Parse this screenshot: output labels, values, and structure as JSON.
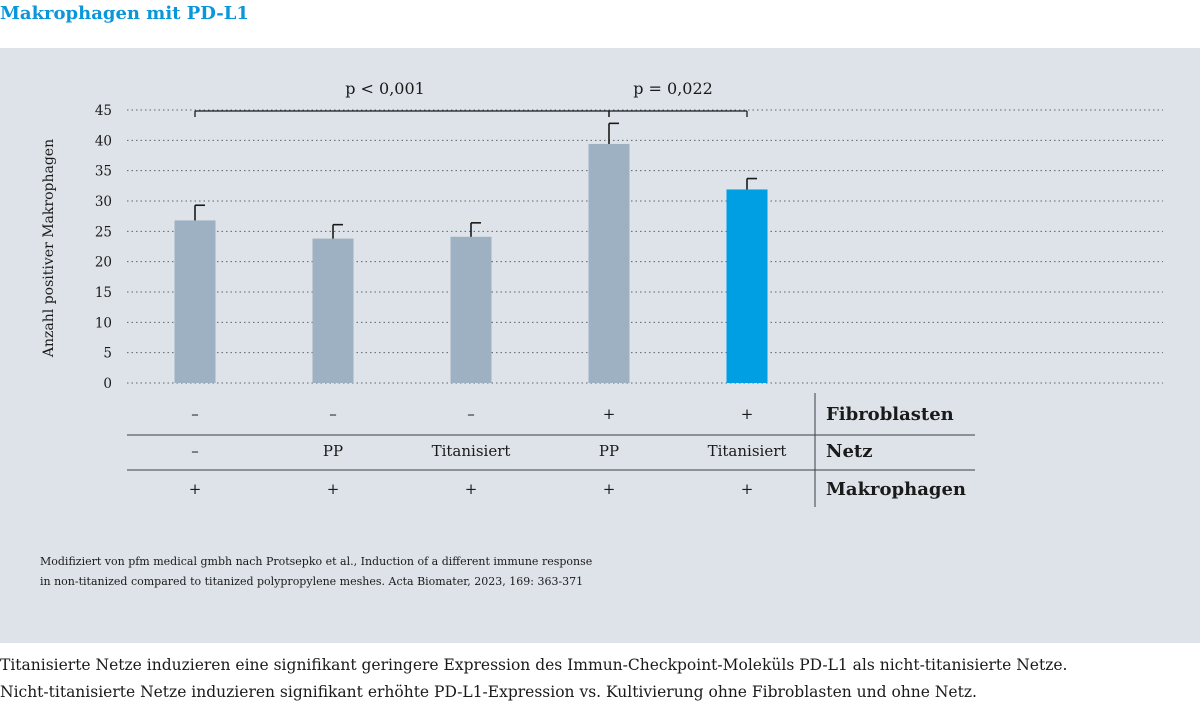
{
  "title": "Makrophagen mit PD-L1",
  "colors": {
    "accent": "#0a97d9",
    "panel_bg": "#dde3e8",
    "bar_grey": "#9eb1c2",
    "bar_highlight": "#009fe3"
  },
  "chart_data": {
    "type": "bar",
    "ylabel": "Anzahl positiver Makrophagen",
    "ylim": [
      0,
      45
    ],
    "yticks": [
      0,
      5,
      10,
      15,
      20,
      25,
      30,
      35,
      40,
      45
    ],
    "grid": "horizontal dotted",
    "bars": [
      {
        "value": 26.8,
        "error": 2.5,
        "highlight": false
      },
      {
        "value": 23.8,
        "error": 2.3,
        "highlight": false
      },
      {
        "value": 24.1,
        "error": 2.3,
        "highlight": false
      },
      {
        "value": 39.4,
        "error": 3.4,
        "highlight": false
      },
      {
        "value": 31.9,
        "error": 1.8,
        "highlight": true
      }
    ],
    "significance": [
      {
        "label": "p < 0,001",
        "from_bar": 0,
        "to_bar": 3
      },
      {
        "label": "p = 0,022",
        "from_bar": 3,
        "to_bar": 4
      }
    ],
    "conditions": [
      {
        "label": "Fibroblasten",
        "values": [
          "–",
          "–",
          "–",
          "+",
          "+"
        ]
      },
      {
        "label": "Netz",
        "values": [
          "–",
          "PP",
          "Titanisiert",
          "PP",
          "Titanisiert"
        ]
      },
      {
        "label": "Makrophagen",
        "values": [
          "+",
          "+",
          "+",
          "+",
          "+"
        ]
      }
    ]
  },
  "source": {
    "line1": "Modifiziert von pfm medical gmbh nach Protsepko et al., Induction of a different immune response",
    "line2": "in non-titanized compared to titanized polypropylene meshes. Acta Biomater, 2023, 169: 363-371"
  },
  "caption": {
    "line1": "Titanisierte Netze induzieren eine signifikant geringere Expression des Immun-Checkpoint-Moleküls PD-L1 als nicht-titanisierte Netze.",
    "line2": "Nicht-titanisierte Netze induzieren signifikant erhöhte PD-L1-Expression vs. Kultivierung ohne Fibroblasten und ohne Netz."
  }
}
